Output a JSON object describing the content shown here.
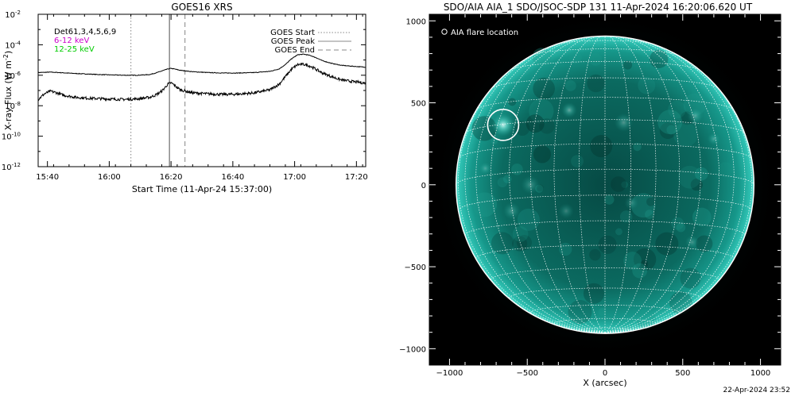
{
  "footer": {
    "timestamp": "22-Apr-2024 23:52"
  },
  "chart_data": [
    {
      "type": "line",
      "title": "GOES16 XRS",
      "xlabel": "Start Time (11-Apr-24 15:37:00)",
      "ylabel": "X-ray Flux (W m",
      "ylabel_exp": "-2",
      "yscale": "log",
      "ylim": [
        1e-12,
        0.01
      ],
      "y_ticks": [
        {
          "value": 1e-12,
          "mantissa": "10",
          "exp": "-12"
        },
        {
          "value": 1e-10,
          "mantissa": "10",
          "exp": "-10"
        },
        {
          "value": 1e-08,
          "mantissa": "10",
          "exp": "-8"
        },
        {
          "value": 1e-06,
          "mantissa": "10",
          "exp": "-6"
        },
        {
          "value": 0.0001,
          "mantissa": "10",
          "exp": "-4"
        },
        {
          "value": 0.01,
          "mantissa": "10",
          "exp": "-2"
        }
      ],
      "xlim_minutes": [
        0,
        106
      ],
      "x_ticks": [
        {
          "minute": 3,
          "label": "15:40"
        },
        {
          "minute": 23,
          "label": "16:00"
        },
        {
          "minute": 43,
          "label": "16:20"
        },
        {
          "minute": 63,
          "label": "16:40"
        },
        {
          "minute": 83,
          "label": "17:00"
        },
        {
          "minute": 103,
          "label": "17:20"
        }
      ],
      "channel_legend": [
        {
          "label": "Det61,3,4,5,6,9",
          "color": "#000000"
        },
        {
          "label": "6-12 keV",
          "color": "#cc00cc"
        },
        {
          "label": "12-25 keV",
          "color": "#00cc00"
        }
      ],
      "event_legend": [
        {
          "label": "GOES Start",
          "style": "dotted",
          "minute": 30
        },
        {
          "label": "GOES Peak",
          "style": "solid",
          "minute": 42.5
        },
        {
          "label": "GOES End",
          "style": "dashed",
          "minute": 47.5
        }
      ],
      "series": [
        {
          "id": "long",
          "color": "#000000",
          "noise": 0.02,
          "x": [
            0,
            4,
            8,
            12,
            16,
            20,
            24,
            28,
            32,
            36,
            38,
            40,
            42,
            43,
            44,
            46,
            50,
            55,
            60,
            65,
            70,
            75,
            78,
            80,
            82,
            84,
            86,
            88,
            90,
            92,
            95,
            98,
            101,
            104,
            106
          ],
          "y": [
            1.5e-06,
            1.6e-06,
            1.45e-06,
            1.3e-06,
            1.2e-06,
            1.1e-06,
            1.05e-06,
            1e-06,
            1e-06,
            1.1e-06,
            1.4e-06,
            1.9e-06,
            2.6e-06,
            2.8e-06,
            2.6e-06,
            2.1e-06,
            1.7e-06,
            1.5e-06,
            1.4e-06,
            1.4e-06,
            1.5e-06,
            1.8e-06,
            2.6e-06,
            5e-06,
            1.2e-05,
            2.2e-05,
            2.4e-05,
            2e-05,
            1.4e-05,
            9e-06,
            6e-06,
            4.5e-06,
            4e-06,
            3.6e-06,
            3.4e-06
          ]
        },
        {
          "id": "short",
          "color": "#000000",
          "noise": 0.09,
          "x": [
            0,
            2,
            4,
            6,
            8,
            12,
            16,
            20,
            24,
            28,
            32,
            36,
            38,
            40,
            42,
            43,
            44,
            46,
            50,
            55,
            60,
            65,
            70,
            75,
            78,
            80,
            82,
            84,
            86,
            88,
            90,
            92,
            95,
            98,
            101,
            104,
            106
          ],
          "y": [
            2.5e-08,
            6e-08,
            9e-08,
            7e-08,
            5e-08,
            3.6e-08,
            3.1e-08,
            2.9e-08,
            2.7e-08,
            2.6e-08,
            2.8e-08,
            3.5e-08,
            5e-08,
            9e-08,
            2.6e-07,
            3.2e-07,
            2.3e-07,
            1.1e-07,
            7e-08,
            6e-08,
            5.5e-08,
            5.8e-08,
            7e-08,
            1.1e-07,
            2.6e-07,
            8e-07,
            2.5e-06,
            5e-06,
            5.2e-06,
            4e-06,
            2.4e-06,
            1.4e-06,
            8e-07,
            5e-07,
            4e-07,
            3.4e-07,
            3e-07
          ]
        }
      ]
    },
    {
      "type": "image",
      "title": "SDO/AIA AIA_1 SDO/JSOC-SDP 131 11-Apr-2024 16:20:06.620 UT",
      "xlabel": "X (arcsec)",
      "xlim": [
        -1130,
        1130
      ],
      "ylim": [
        -1100,
        1040
      ],
      "x_ticks": [
        -1000,
        -500,
        0,
        500,
        1000
      ],
      "y_ticks": [
        1000,
        500,
        0,
        -500,
        -1000
      ],
      "solar_radius_arcsec": 958,
      "grid_step_deg": 10,
      "legend": "AIA flare location",
      "flare": {
        "x": -655,
        "y": 365,
        "radius": 100
      },
      "active_regions": [
        {
          "x": -655,
          "y": 365,
          "r": 75,
          "a": 0.9
        },
        {
          "x": -230,
          "y": 455,
          "r": 50,
          "a": 0.45
        },
        {
          "x": 120,
          "y": 380,
          "r": 60,
          "a": 0.35
        },
        {
          "x": 580,
          "y": 420,
          "r": 50,
          "a": 0.35
        },
        {
          "x": 700,
          "y": 280,
          "r": 40,
          "a": 0.3
        },
        {
          "x": -480,
          "y": 0,
          "r": 60,
          "a": 0.3
        },
        {
          "x": -600,
          "y": -160,
          "r": 55,
          "a": 0.3
        },
        {
          "x": -250,
          "y": -160,
          "r": 50,
          "a": 0.25
        },
        {
          "x": 170,
          "y": -110,
          "r": 45,
          "a": 0.25
        },
        {
          "x": 560,
          "y": -350,
          "r": 45,
          "a": 0.3
        },
        {
          "x": -770,
          "y": 100,
          "r": 40,
          "a": 0.3
        }
      ]
    }
  ]
}
